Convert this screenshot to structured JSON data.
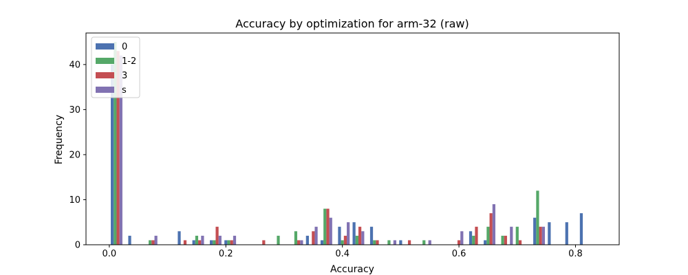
{
  "chart_data": {
    "type": "bar",
    "title": "Accuracy by optimization for arm-32 (raw)",
    "xlabel": "Accuracy",
    "ylabel": "Frequency",
    "xlim": [
      -0.04,
      0.875
    ],
    "ylim": [
      0,
      47
    ],
    "xticks": [
      0.0,
      0.2,
      0.4,
      0.6,
      0.8
    ],
    "xtick_labels": [
      "0.0",
      "0.2",
      "0.4",
      "0.6",
      "0.8"
    ],
    "yticks": [
      0,
      10,
      20,
      30,
      40
    ],
    "ytick_labels": [
      "0",
      "10",
      "20",
      "30",
      "40"
    ],
    "grid": false,
    "legend_position": "top-left",
    "bar_width": 0.005,
    "series": [
      {
        "name": "0",
        "color": "#4c72b0",
        "points": [
          [
            0.005,
            40
          ],
          [
            0.035,
            2
          ],
          [
            0.12,
            3
          ],
          [
            0.145,
            1
          ],
          [
            0.175,
            1
          ],
          [
            0.2,
            1
          ],
          [
            0.34,
            2
          ],
          [
            0.365,
            1
          ],
          [
            0.395,
            4
          ],
          [
            0.42,
            5
          ],
          [
            0.45,
            4
          ],
          [
            0.5,
            1
          ],
          [
            0.62,
            3
          ],
          [
            0.645,
            1
          ],
          [
            0.73,
            6
          ],
          [
            0.755,
            5
          ],
          [
            0.785,
            5
          ],
          [
            0.81,
            7
          ]
        ]
      },
      {
        "name": "1-2",
        "color": "#55a868",
        "points": [
          [
            0.01,
            45
          ],
          [
            0.07,
            1
          ],
          [
            0.15,
            2
          ],
          [
            0.18,
            1
          ],
          [
            0.205,
            1
          ],
          [
            0.29,
            2
          ],
          [
            0.32,
            3
          ],
          [
            0.37,
            8
          ],
          [
            0.4,
            1
          ],
          [
            0.425,
            2
          ],
          [
            0.455,
            1
          ],
          [
            0.48,
            1
          ],
          [
            0.54,
            1
          ],
          [
            0.625,
            2
          ],
          [
            0.65,
            4
          ],
          [
            0.675,
            2
          ],
          [
            0.7,
            4
          ],
          [
            0.735,
            12
          ]
        ]
      },
      {
        "name": "3",
        "color": "#c44e52",
        "points": [
          [
            0.015,
            43
          ],
          [
            0.075,
            1
          ],
          [
            0.13,
            1
          ],
          [
            0.155,
            1
          ],
          [
            0.185,
            4
          ],
          [
            0.21,
            1
          ],
          [
            0.265,
            1
          ],
          [
            0.325,
            1
          ],
          [
            0.35,
            3
          ],
          [
            0.375,
            8
          ],
          [
            0.405,
            2
          ],
          [
            0.43,
            4
          ],
          [
            0.46,
            1
          ],
          [
            0.515,
            1
          ],
          [
            0.6,
            1
          ],
          [
            0.63,
            4
          ],
          [
            0.655,
            7
          ],
          [
            0.68,
            2
          ],
          [
            0.705,
            1
          ],
          [
            0.74,
            4
          ]
        ]
      },
      {
        "name": "s",
        "color": "#8172b2",
        "points": [
          [
            0.02,
            42
          ],
          [
            0.08,
            2
          ],
          [
            0.16,
            2
          ],
          [
            0.19,
            2
          ],
          [
            0.215,
            2
          ],
          [
            0.33,
            1
          ],
          [
            0.355,
            4
          ],
          [
            0.38,
            6
          ],
          [
            0.41,
            5
          ],
          [
            0.435,
            3
          ],
          [
            0.49,
            1
          ],
          [
            0.55,
            1
          ],
          [
            0.605,
            3
          ],
          [
            0.66,
            9
          ],
          [
            0.69,
            4
          ],
          [
            0.745,
            4
          ]
        ]
      }
    ]
  }
}
